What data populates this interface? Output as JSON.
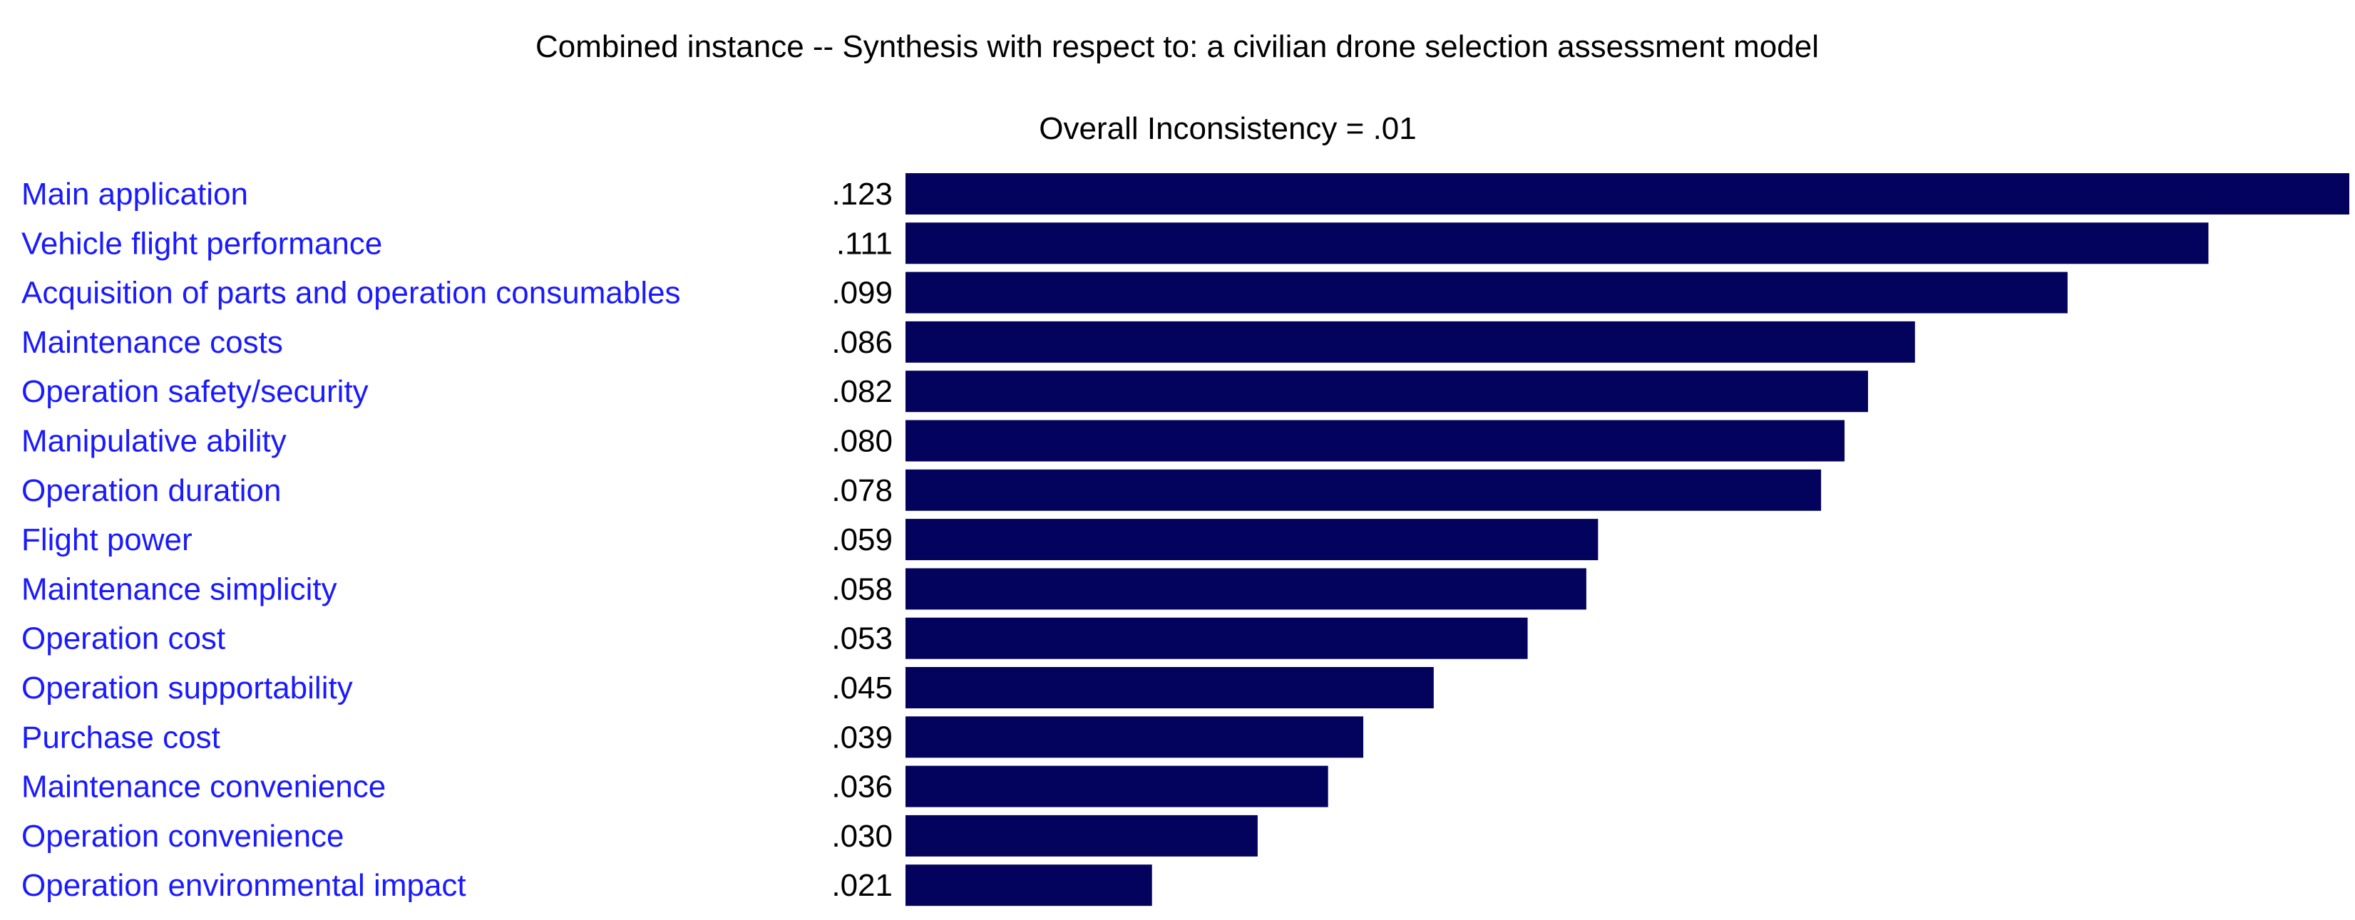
{
  "chart_data": {
    "type": "bar",
    "orientation": "horizontal",
    "title": "Combined instance -- Synthesis with respect to: a civilian drone selection assessment model",
    "subtitle": "Overall Inconsistency = .01",
    "categories": [
      "Main application",
      "Vehicle flight performance",
      "Acquisition of parts and operation consumables",
      "Maintenance costs",
      "Operation safety/security",
      "Manipulative ability",
      "Operation duration",
      "Flight power",
      "Maintenance simplicity",
      "Operation cost",
      "Operation supportability",
      "Purchase cost",
      "Maintenance convenience",
      "Operation convenience",
      "Operation environmental impact"
    ],
    "values": [
      0.123,
      0.111,
      0.099,
      0.086,
      0.082,
      0.08,
      0.078,
      0.059,
      0.058,
      0.053,
      0.045,
      0.039,
      0.036,
      0.03,
      0.021
    ],
    "value_labels": [
      ".123",
      ".111",
      ".099",
      ".086",
      ".082",
      ".080",
      ".078",
      ".059",
      ".058",
      ".053",
      ".045",
      ".039",
      ".036",
      ".030",
      ".021"
    ],
    "xlim": [
      0,
      0.123
    ],
    "grid": false,
    "legend": "none"
  },
  "colors": {
    "bar": "#03035e",
    "category_label": "#1a1aff",
    "value_label": "#000000",
    "background": "#ffffff"
  }
}
